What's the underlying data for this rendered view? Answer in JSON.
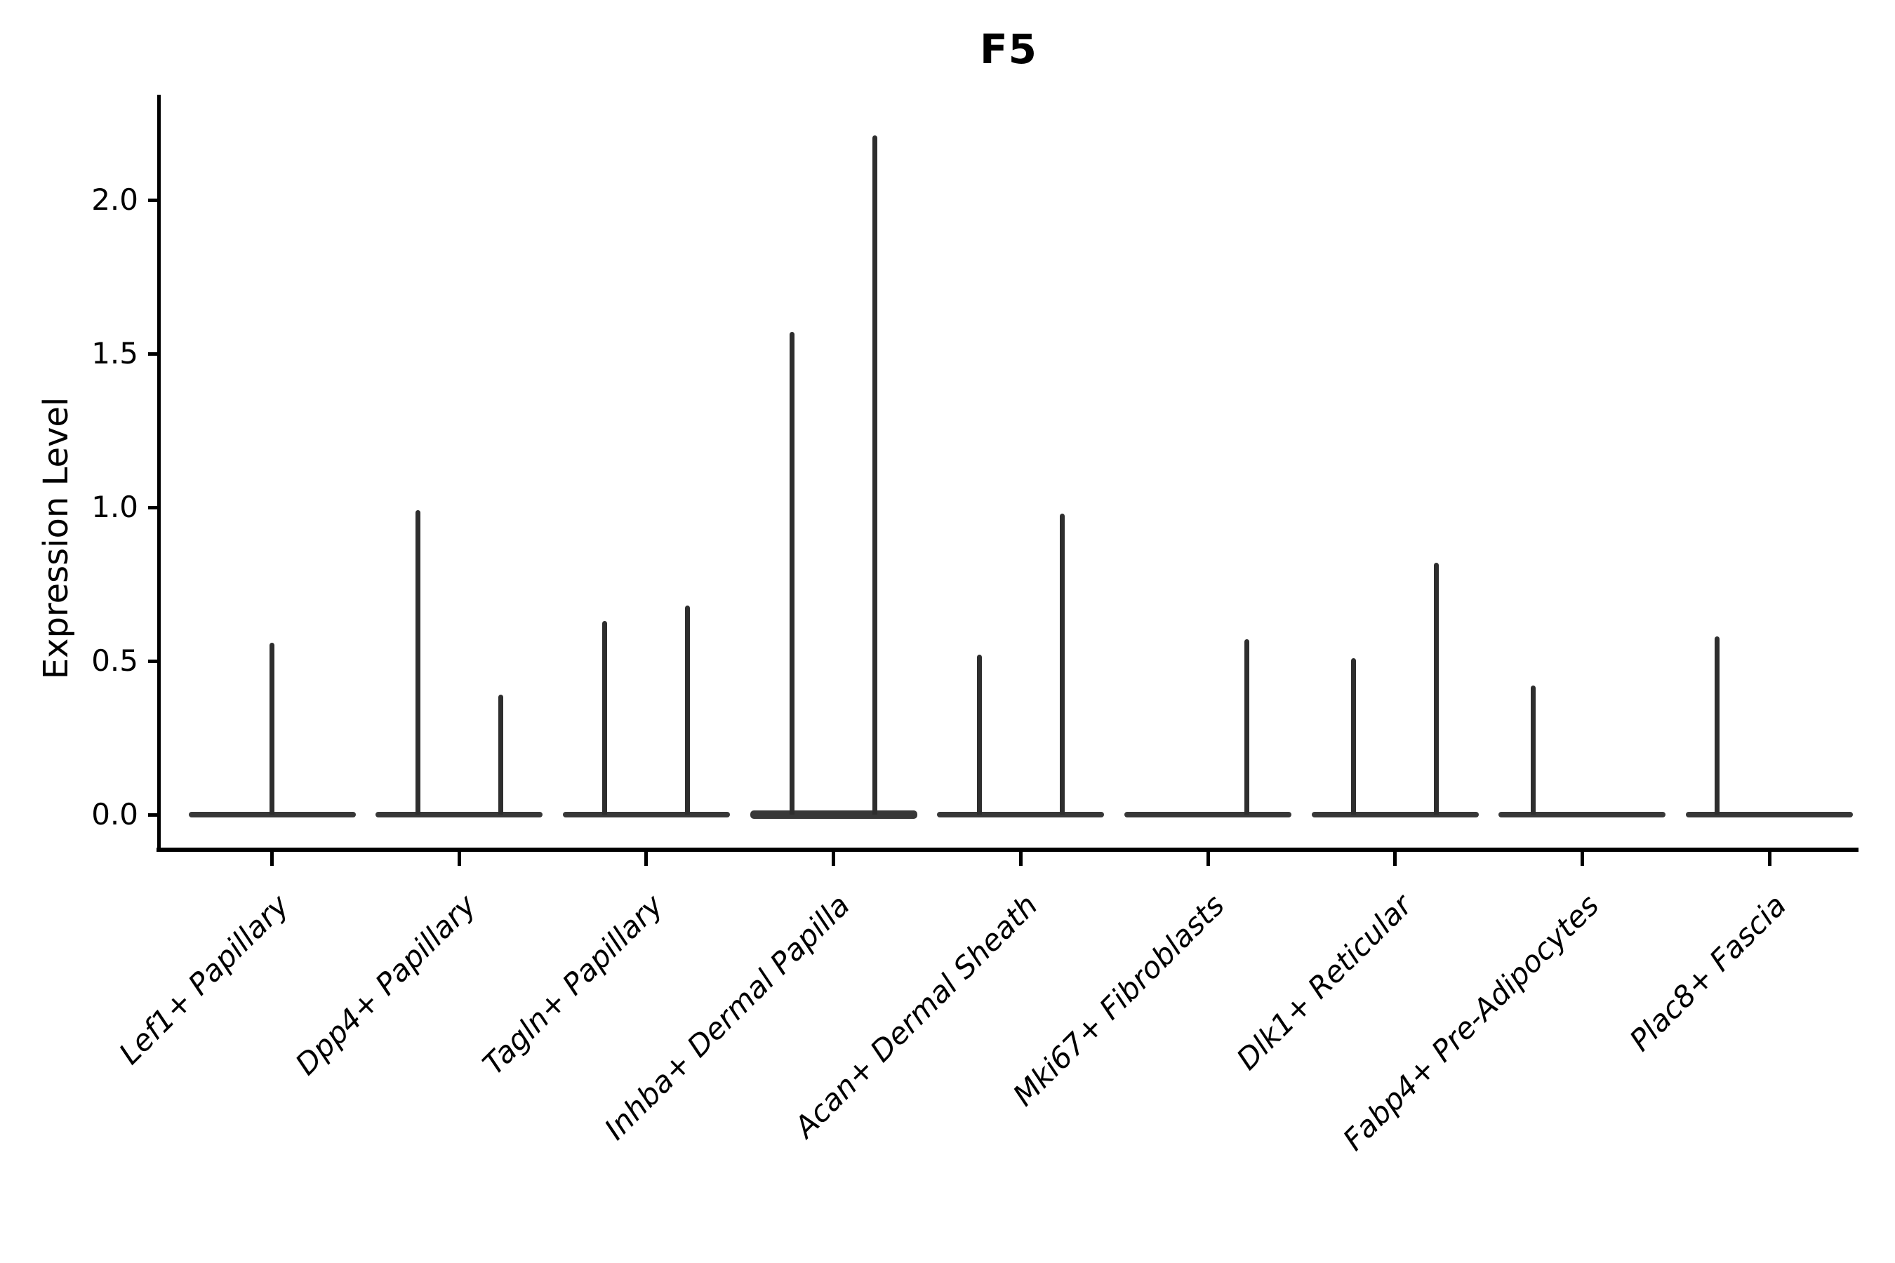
{
  "chart_data": {
    "type": "violin",
    "title": "F5",
    "ylabel": "Expression Level",
    "xlabel": "",
    "ytick_labels": [
      "0.0",
      "0.5",
      "1.0",
      "1.5",
      "2.0"
    ],
    "ytick_values": [
      0.0,
      0.5,
      1.0,
      1.5,
      2.0
    ],
    "ylim": [
      -0.11,
      2.34
    ],
    "grid": false,
    "legend": "none",
    "categories": [
      "Lef1+ Papillary",
      "Dpp4+ Papillary",
      "Tagln+ Papillary",
      "Inhba+ Dermal Papilla",
      "Acan+ Dermal Sheath",
      "Mki67+ Fibroblasts",
      "Dlk1+ Reticular",
      "Fabp4+ Pre-Adipocytes",
      "Plac8+ Fascia"
    ],
    "violins": [
      {
        "category": "Lef1+ Papillary",
        "base_thickness": 8,
        "spikes": [
          {
            "dx": 0,
            "max_expression": 0.56
          }
        ]
      },
      {
        "category": "Dpp4+ Papillary",
        "base_thickness": 8,
        "spikes": [
          {
            "dx": -59,
            "max_expression": 0.99
          },
          {
            "dx": 59,
            "max_expression": 0.39
          }
        ]
      },
      {
        "category": "Tagln+ Papillary",
        "base_thickness": 8,
        "spikes": [
          {
            "dx": -59,
            "max_expression": 0.63
          },
          {
            "dx": 59,
            "max_expression": 0.68
          }
        ]
      },
      {
        "category": "Inhba+ Dermal Papilla",
        "base_thickness": 12,
        "spikes": [
          {
            "dx": -59,
            "max_expression": 1.57
          },
          {
            "dx": 59,
            "max_expression": 2.21
          }
        ]
      },
      {
        "category": "Acan+ Dermal Sheath",
        "base_thickness": 8,
        "spikes": [
          {
            "dx": -59,
            "max_expression": 0.52
          },
          {
            "dx": 59,
            "max_expression": 0.98
          }
        ]
      },
      {
        "category": "Mki67+ Fibroblasts",
        "base_thickness": 8,
        "spikes": [
          {
            "dx": 55,
            "max_expression": 0.57
          }
        ]
      },
      {
        "category": "Dlk1+ Reticular",
        "base_thickness": 8,
        "spikes": [
          {
            "dx": -59,
            "max_expression": 0.51
          },
          {
            "dx": 59,
            "max_expression": 0.82
          }
        ]
      },
      {
        "category": "Fabp4+ Pre-Adipocytes",
        "base_thickness": 8,
        "spikes": [
          {
            "dx": -70,
            "max_expression": 0.42
          }
        ]
      },
      {
        "category": "Plac8+ Fascia",
        "base_thickness": 8,
        "spikes": [
          {
            "dx": -75,
            "max_expression": 0.58
          }
        ]
      }
    ]
  }
}
